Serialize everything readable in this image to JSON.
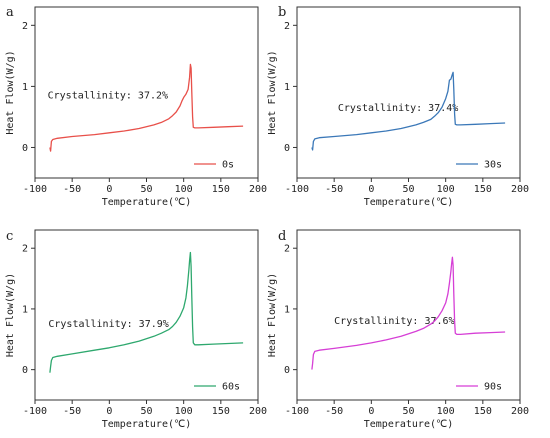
{
  "chart_data": [
    {
      "type": "line",
      "panel_label": "a",
      "xlabel": "Temperature(℃)",
      "ylabel": "Heat Flow(W/g)",
      "xlim": [
        -100,
        200
      ],
      "ylim": [
        -0.5,
        2.3
      ],
      "xticks": [
        -100,
        -50,
        0,
        50,
        100,
        150,
        200
      ],
      "yticks": [
        0,
        1,
        2
      ],
      "annotation": "Crystallinity: 37.2%",
      "legend_position": "bottom-right",
      "series": [
        {
          "name": "0s",
          "color": "#e8504a",
          "x": [
            -80,
            -79,
            -78,
            -76,
            -70,
            -50,
            -20,
            0,
            20,
            40,
            60,
            70,
            80,
            85,
            90,
            95,
            98,
            100,
            103,
            106,
            108,
            109,
            110,
            111,
            112,
            113,
            115,
            120,
            140,
            160,
            180
          ],
          "y": [
            0.0,
            -0.06,
            0.1,
            0.13,
            0.15,
            0.18,
            0.21,
            0.24,
            0.27,
            0.31,
            0.37,
            0.41,
            0.47,
            0.52,
            0.58,
            0.68,
            0.77,
            0.82,
            0.87,
            0.95,
            1.15,
            1.36,
            1.3,
            0.9,
            0.5,
            0.33,
            0.32,
            0.32,
            0.33,
            0.34,
            0.35
          ]
        }
      ]
    },
    {
      "type": "line",
      "panel_label": "b",
      "xlabel": "Temperature(℃)",
      "ylabel": "Heat Flow(W/g)",
      "xlim": [
        -100,
        200
      ],
      "ylim": [
        -0.5,
        2.3
      ],
      "xticks": [
        -100,
        -50,
        0,
        50,
        100,
        150,
        200
      ],
      "yticks": [
        0,
        1,
        2
      ],
      "annotation": "Crystallinity: 37.4%",
      "legend_position": "bottom-right",
      "series": [
        {
          "name": "30s",
          "color": "#3b78b8",
          "x": [
            -80,
            -79,
            -78,
            -76,
            -70,
            -50,
            -20,
            0,
            20,
            40,
            60,
            70,
            80,
            85,
            90,
            95,
            100,
            103,
            105,
            107,
            109,
            110,
            111,
            112,
            113,
            115,
            120,
            140,
            160,
            180
          ],
          "y": [
            0.0,
            -0.04,
            0.1,
            0.14,
            0.16,
            0.18,
            0.21,
            0.24,
            0.27,
            0.31,
            0.37,
            0.41,
            0.46,
            0.51,
            0.57,
            0.66,
            0.8,
            0.92,
            1.1,
            1.12,
            1.2,
            1.23,
            0.95,
            0.55,
            0.38,
            0.37,
            0.37,
            0.38,
            0.39,
            0.4
          ]
        }
      ]
    },
    {
      "type": "line",
      "panel_label": "c",
      "xlabel": "Temperature(℃)",
      "ylabel": "Heat Flow(W/g)",
      "xlim": [
        -100,
        200
      ],
      "ylim": [
        -0.5,
        2.3
      ],
      "xticks": [
        -100,
        -50,
        0,
        50,
        100,
        150,
        200
      ],
      "yticks": [
        0,
        1,
        2
      ],
      "annotation": "Crystallinity: 37.9%",
      "legend_position": "bottom-right",
      "series": [
        {
          "name": "60s",
          "color": "#2ea86e",
          "x": [
            -80,
            -79,
            -78,
            -76,
            -70,
            -50,
            -20,
            0,
            20,
            40,
            60,
            70,
            80,
            85,
            90,
            95,
            100,
            103,
            105,
            107,
            108,
            109,
            110,
            111,
            112,
            113,
            115,
            120,
            140,
            160,
            180
          ],
          "y": [
            -0.05,
            0.05,
            0.15,
            0.2,
            0.22,
            0.26,
            0.32,
            0.36,
            0.41,
            0.47,
            0.55,
            0.6,
            0.66,
            0.71,
            0.78,
            0.88,
            1.02,
            1.18,
            1.38,
            1.65,
            1.8,
            1.93,
            1.7,
            1.2,
            0.7,
            0.44,
            0.41,
            0.41,
            0.42,
            0.43,
            0.44
          ]
        }
      ]
    },
    {
      "type": "line",
      "panel_label": "d",
      "xlabel": "Temperature(℃)",
      "ylabel": "Heat Flow(W/g)",
      "xlim": [
        -100,
        200
      ],
      "ylim": [
        -0.5,
        2.3
      ],
      "xticks": [
        -100,
        -50,
        0,
        50,
        100,
        150,
        200
      ],
      "yticks": [
        0,
        1,
        2
      ],
      "annotation": "Crystallinity: 37.6%",
      "legend_position": "bottom-right",
      "series": [
        {
          "name": "90s",
          "color": "#d63fd6",
          "x": [
            -80,
            -79,
            -78,
            -76,
            -70,
            -50,
            -20,
            0,
            20,
            40,
            60,
            70,
            80,
            85,
            90,
            95,
            100,
            103,
            105,
            107,
            108,
            109,
            110,
            111,
            112,
            113,
            115,
            120,
            140,
            160,
            180
          ],
          "y": [
            0.0,
            0.1,
            0.25,
            0.3,
            0.32,
            0.35,
            0.4,
            0.44,
            0.49,
            0.55,
            0.63,
            0.68,
            0.75,
            0.8,
            0.87,
            0.97,
            1.1,
            1.25,
            1.42,
            1.62,
            1.74,
            1.85,
            1.72,
            1.25,
            0.8,
            0.6,
            0.58,
            0.58,
            0.6,
            0.61,
            0.62
          ]
        }
      ]
    }
  ]
}
